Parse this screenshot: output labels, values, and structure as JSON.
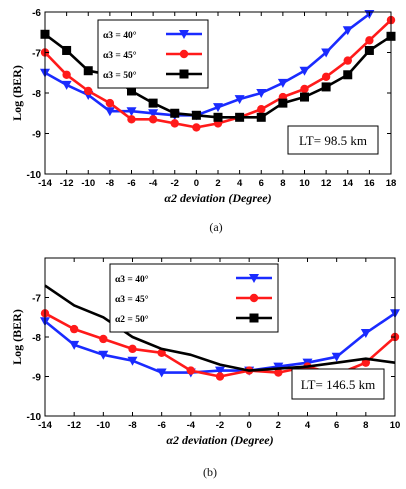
{
  "chart_data": [
    {
      "type": "line",
      "caption": "(a)",
      "xlabel": "α2 deviation (Degree)",
      "ylabel": "Log (BER)",
      "xlim": [
        -14,
        18
      ],
      "ylim": [
        -10,
        -6
      ],
      "xticks": [
        -14,
        -12,
        -10,
        -8,
        -6,
        -4,
        -2,
        0,
        2,
        4,
        6,
        8,
        10,
        12,
        14,
        16,
        18
      ],
      "yticks": [
        -10,
        -9,
        -8,
        -7,
        -6
      ],
      "grid": false,
      "legend_position": "top-left",
      "annotation": "LT= 98.5 km",
      "series": [
        {
          "name": "α3 = 40°",
          "color": "#1a2bff",
          "marker": "triangle-down",
          "x": [
            -14,
            -12,
            -10,
            -8,
            -6,
            -4,
            -2,
            0,
            2,
            4,
            6,
            8,
            10,
            12,
            14,
            16
          ],
          "y": [
            -7.5,
            -7.8,
            -8.05,
            -8.45,
            -8.45,
            -8.5,
            -8.55,
            -8.55,
            -8.35,
            -8.15,
            -8.0,
            -7.75,
            -7.45,
            -7.0,
            -6.45,
            -6.05
          ]
        },
        {
          "name": "α3 = 45°",
          "color": "#ff1a1a",
          "marker": "circle",
          "x": [
            -14,
            -12,
            -10,
            -8,
            -6,
            -4,
            -2,
            0,
            2,
            4,
            6,
            8,
            10,
            12,
            14,
            16,
            18
          ],
          "y": [
            -7.0,
            -7.55,
            -7.95,
            -8.25,
            -8.65,
            -8.65,
            -8.75,
            -8.85,
            -8.75,
            -8.6,
            -8.4,
            -8.1,
            -7.9,
            -7.6,
            -7.2,
            -6.7,
            -6.2
          ]
        },
        {
          "name": "α3 = 50°",
          "color": "#000000",
          "marker": "square",
          "x": [
            -14,
            -12,
            -10,
            -8,
            -6,
            -4,
            -2,
            0,
            2,
            4,
            6,
            8,
            10,
            12,
            14,
            16,
            18
          ],
          "y": [
            -6.55,
            -6.95,
            -7.45,
            -7.55,
            -7.95,
            -8.25,
            -8.5,
            -8.55,
            -8.6,
            -8.6,
            -8.6,
            -8.25,
            -8.1,
            -7.85,
            -7.55,
            -6.95,
            -6.6
          ]
        }
      ]
    },
    {
      "type": "line",
      "caption": "(b)",
      "xlabel": "α2 deviation (Degree)",
      "ylabel": "Log (BER)",
      "xlim": [
        -14,
        10
      ],
      "ylim": [
        -10,
        -6
      ],
      "xticks": [
        -14,
        -12,
        -10,
        -8,
        -6,
        -4,
        -2,
        0,
        2,
        4,
        6,
        8,
        10
      ],
      "yticks": [
        -10,
        -9,
        -8,
        -7
      ],
      "grid": false,
      "legend_position": "top-left",
      "annotation": "LT= 146.5 km",
      "series": [
        {
          "name": "α3 = 40°",
          "color": "#1a2bff",
          "marker": "triangle-down",
          "x": [
            -14,
            -12,
            -10,
            -8,
            -6,
            -4,
            -2,
            0,
            2,
            4,
            6,
            8,
            10
          ],
          "y": [
            -7.6,
            -8.2,
            -8.45,
            -8.6,
            -8.9,
            -8.9,
            -8.85,
            -8.85,
            -8.75,
            -8.65,
            -8.5,
            -7.9,
            -7.4
          ]
        },
        {
          "name": "α3 = 45°",
          "color": "#ff1a1a",
          "marker": "circle",
          "x": [
            -14,
            -12,
            -10,
            -8,
            -6,
            -4,
            -2,
            0,
            2,
            4,
            6,
            8,
            10
          ],
          "y": [
            -7.4,
            -7.8,
            -8.05,
            -8.3,
            -8.4,
            -8.85,
            -9.0,
            -8.85,
            -8.9,
            -8.75,
            -8.95,
            -8.65,
            -8.0
          ]
        },
        {
          "name": "α2 = 50°",
          "color": "#000000",
          "marker": "none",
          "x": [
            -14,
            -12,
            -10,
            -8,
            -6,
            -4,
            -2,
            0,
            2,
            4,
            6,
            8,
            10
          ],
          "y": [
            -6.7,
            -7.2,
            -7.5,
            -8.0,
            -8.3,
            -8.45,
            -8.7,
            -8.85,
            -8.8,
            -8.75,
            -8.65,
            -8.55,
            -8.65
          ]
        }
      ]
    }
  ]
}
